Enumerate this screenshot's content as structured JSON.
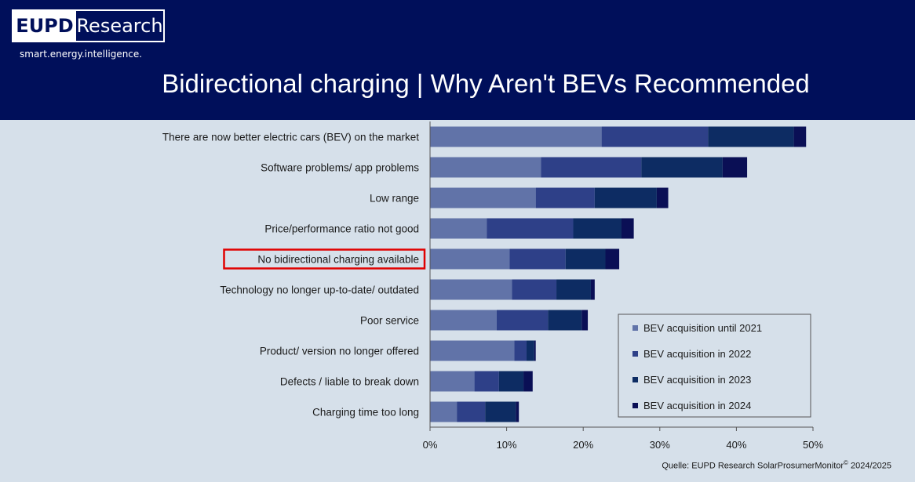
{
  "header": {
    "logo_left": "EUPD",
    "logo_right": "Research",
    "tagline": "smart.energy.intelligence.",
    "title": "Bidirectional charging | Why Aren't BEVs Recommended"
  },
  "source": {
    "prefix": "Quelle: EUPD Research SolarProsumerMonitor",
    "mark": "©",
    "suffix": " 2024/2025"
  },
  "colors": {
    "background": "#d6e0ea",
    "header": "#000f5a",
    "highlight_box": "#e00000",
    "series": [
      "#6173a8",
      "#2e4088",
      "#0d2c63",
      "#0a0f55"
    ]
  },
  "chart_data": {
    "type": "bar",
    "orientation": "horizontal",
    "stacked": true,
    "categories": [
      "There are now better electric cars (BEV) on the market",
      "Software problems/ app problems",
      "Low range",
      "Price/performance ratio not good",
      "No bidirectional charging available",
      "Technology no longer up-to-date/ outdated",
      "Poor service",
      "Product/ version no longer offered",
      "Defects / liable to break down",
      "Charging time too long"
    ],
    "highlighted_category": "No bidirectional charging available",
    "series": [
      {
        "name": "BEV acquisition until 2021",
        "values": [
          22.4,
          14.5,
          13.8,
          7.4,
          10.4,
          10.7,
          8.7,
          11.0,
          5.8,
          3.5
        ]
      },
      {
        "name": "BEV acquisition in 2022",
        "values": [
          13.9,
          13.1,
          7.7,
          11.3,
          7.3,
          5.8,
          6.7,
          1.6,
          3.2,
          3.7
        ]
      },
      {
        "name": "BEV acquisition in 2023",
        "values": [
          11.2,
          10.6,
          8.1,
          6.3,
          5.2,
          4.5,
          4.4,
          1.0,
          3.2,
          4.0
        ]
      },
      {
        "name": "BEV acquisition in 2024",
        "values": [
          1.6,
          3.2,
          1.5,
          1.6,
          1.8,
          0.5,
          0.8,
          0.2,
          1.2,
          0.4
        ]
      }
    ],
    "xlim": [
      0,
      50
    ],
    "xticks": [
      "0%",
      "10%",
      "20%",
      "30%",
      "40%",
      "50%"
    ],
    "xlabel": "",
    "ylabel": "",
    "legend_position": "bottom-right",
    "grid": false
  }
}
